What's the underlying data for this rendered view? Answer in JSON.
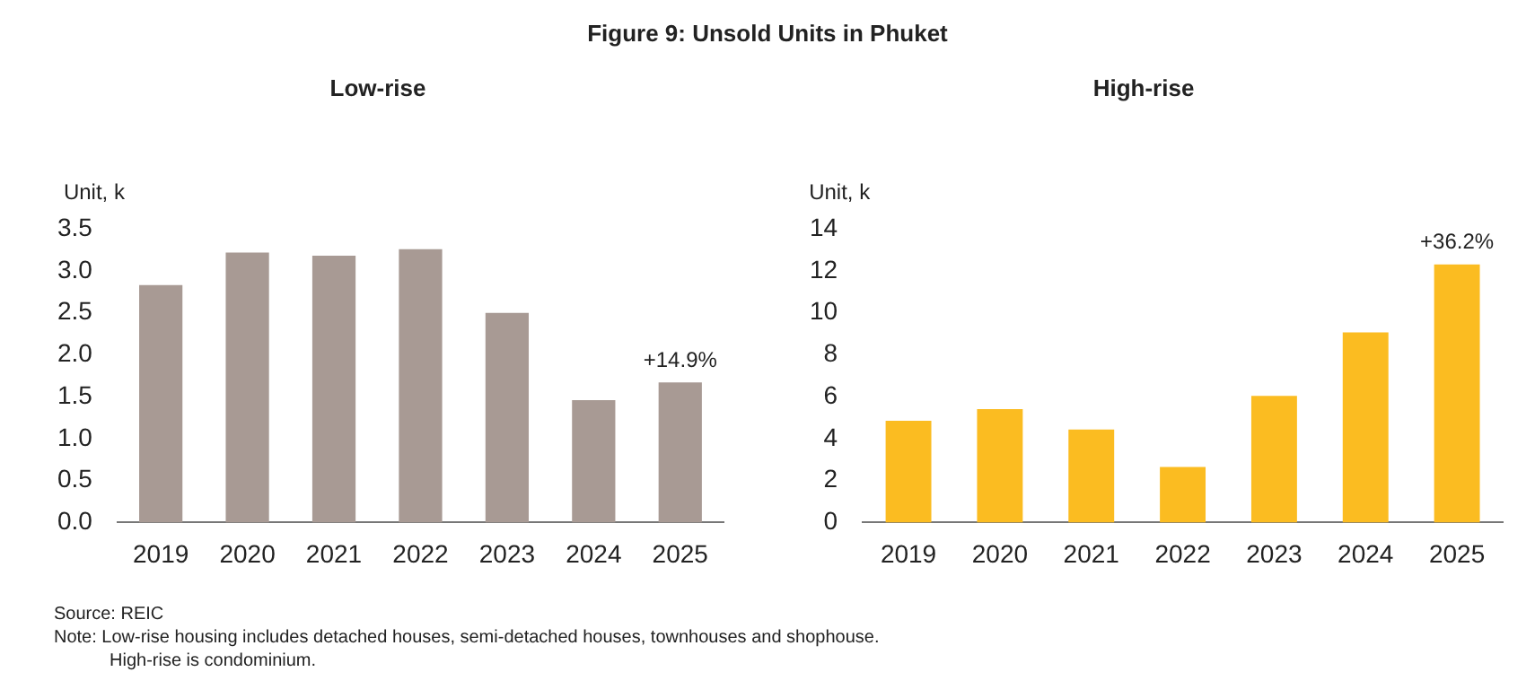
{
  "chart_data": [
    {
      "type": "bar",
      "title": "Low-rise",
      "ylabel": "Unit, k",
      "categories": [
        "2019",
        "2020",
        "2021",
        "2022",
        "2023",
        "2024",
        "2025"
      ],
      "values": [
        2.83,
        3.22,
        3.18,
        3.26,
        2.5,
        1.46,
        1.67
      ],
      "color": "#a89a94",
      "ylim": [
        0,
        3.5
      ],
      "yticks": [
        {
          "value": 0,
          "label": "0.0"
        },
        {
          "value": 0.5,
          "label": "0.5"
        },
        {
          "value": 1,
          "label": "1.0"
        },
        {
          "value": 1.5,
          "label": "1.5"
        },
        {
          "value": 2,
          "label": "2.0"
        },
        {
          "value": 2.5,
          "label": "2.5"
        },
        {
          "value": 3,
          "label": "3.0"
        },
        {
          "value": 3.5,
          "label": "3.5"
        }
      ],
      "grid": false,
      "legend": false,
      "annotations": [
        "Figure 9: Unsold Units in Phuket",
        {
          "text": "+14.9%",
          "x": "2025",
          "y": 1.67
        },
        "Source: REIC",
        "Note: Low-rise housing  includes detached houses, semi-detached houses, townhouses and shophouse.",
        "High-rise is condominium."
      ]
    },
    {
      "type": "bar",
      "title": "High-rise",
      "ylabel": "Unit, k",
      "categories": [
        "2019",
        "2020",
        "2021",
        "2022",
        "2023",
        "2024",
        "2025"
      ],
      "values": [
        4.85,
        5.41,
        4.44,
        2.65,
        6.04,
        9.07,
        12.31
      ],
      "color": "#fbbc21",
      "ylim": [
        0,
        14
      ],
      "yticks": [
        0,
        2,
        4,
        6,
        8,
        10,
        12,
        14
      ],
      "grid": false,
      "legend": false,
      "annotations": [
        {
          "text": "+36.2%",
          "x": "2025",
          "y": 12.31
        }
      ]
    }
  ]
}
